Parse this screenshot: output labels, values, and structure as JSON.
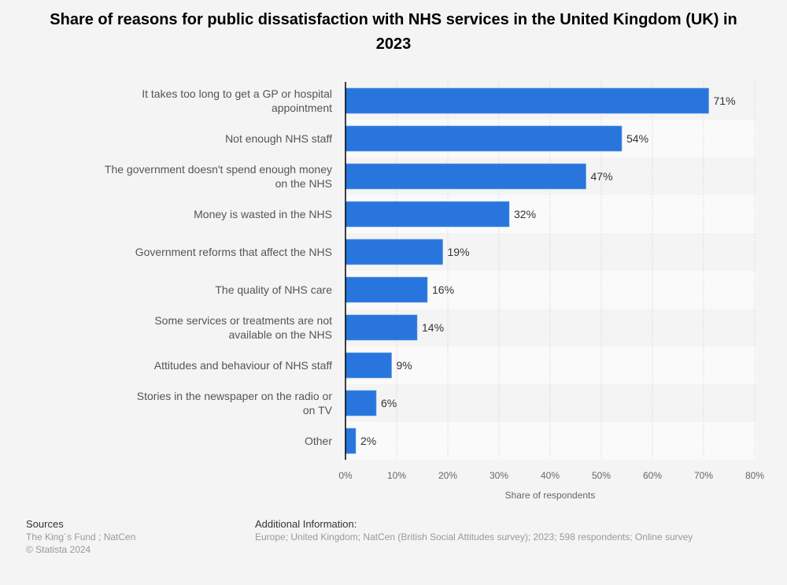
{
  "chart_data": {
    "type": "bar",
    "orientation": "horizontal",
    "title": "Share of reasons for public dissatisfaction with NHS services in the United Kingdom (UK) in 2023",
    "xlabel": "Share of respondents",
    "ylabel": "",
    "xlim": [
      0,
      80
    ],
    "ticks": [
      "0%",
      "10%",
      "20%",
      "30%",
      "40%",
      "50%",
      "60%",
      "70%",
      "80%"
    ],
    "grid": true,
    "bar_color": "#2876dd",
    "categories": [
      "It takes too long to get a GP or hospital appointment",
      "Not enough NHS staff",
      "The government doesn't spend enough money on the NHS",
      "Money is wasted in the NHS",
      "Government reforms that affect the NHS",
      "The quality of NHS care",
      "Some services or treatments are not available on the NHS",
      "Attitudes and behaviour of NHS staff",
      "Stories in the newspaper on the radio or on TV",
      "Other"
    ],
    "values": [
      71,
      54,
      47,
      32,
      19,
      16,
      14,
      9,
      6,
      2
    ],
    "data_labels": [
      "71%",
      "54%",
      "47%",
      "32%",
      "19%",
      "16%",
      "14%",
      "9%",
      "6%",
      "2%"
    ]
  },
  "footer": {
    "sources_heading": "Sources",
    "sources_line1": "The King´s Fund ; NatCen",
    "sources_line2": "© Statista 2024",
    "info_heading": "Additional Information:",
    "info_text": "Europe; United Kingdom; NatCen (British Social Attitudes survey); 2023; 598 respondents; Online survey"
  }
}
